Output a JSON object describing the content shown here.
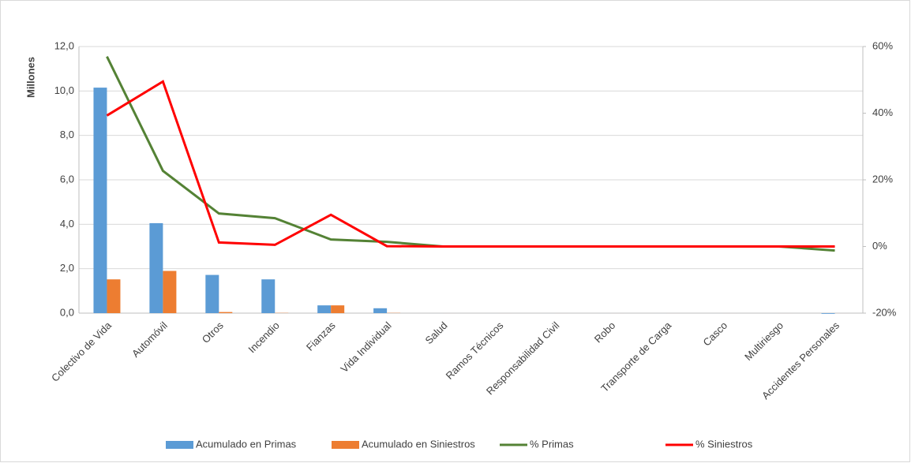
{
  "chart_data": {
    "type": "bar-line",
    "y_axis_label": "Millones",
    "categories": [
      "Colectivo de Vida",
      "Automóvil",
      "Otros",
      "Incendio",
      "Fianzas",
      "Vida Individual",
      "Salud",
      "Ramos Técnicos",
      "Responsabilidad Civil",
      "Robo",
      "Transporte de Carga",
      "Casco",
      "Multiriesgo",
      "Accidentes Personales"
    ],
    "series": [
      {
        "name": "Acumulado en Primas",
        "type": "bar",
        "color": "#5b9bd5",
        "values": [
          10.15,
          4.05,
          1.72,
          1.52,
          0.35,
          0.22,
          0,
          0,
          0,
          0,
          0,
          0,
          0,
          -0.03
        ]
      },
      {
        "name": "Acumulado en Siniestros",
        "type": "bar",
        "color": "#ed7d31",
        "values": [
          1.52,
          1.9,
          0.05,
          0.01,
          0.35,
          0.01,
          0,
          0,
          0,
          0,
          0,
          0,
          0,
          0
        ]
      },
      {
        "name": "% Primas",
        "type": "line",
        "axis": "y2",
        "color": "#548235",
        "values": [
          57,
          22.7,
          9.9,
          8.5,
          2.1,
          1.4,
          0,
          0,
          0,
          0,
          0,
          0,
          0,
          -1.2
        ]
      },
      {
        "name": "% Siniestros",
        "type": "line",
        "axis": "y2",
        "color": "#ff0000",
        "values": [
          39.3,
          49.5,
          1.2,
          0.5,
          9.5,
          0.1,
          0,
          0,
          0,
          0,
          0,
          0,
          0,
          0
        ]
      }
    ],
    "ylim": [
      0,
      12
    ],
    "yticks": [
      {
        "value": 0,
        "label": "0,0"
      },
      {
        "value": 2,
        "label": "2,0"
      },
      {
        "value": 4,
        "label": "4,0"
      },
      {
        "value": 6,
        "label": "6,0"
      },
      {
        "value": 8,
        "label": "8,0"
      },
      {
        "value": 10,
        "label": "10,0"
      },
      {
        "value": 12,
        "label": "12,0"
      }
    ],
    "y2lim": [
      -20,
      60
    ],
    "y2ticks": [
      {
        "value": -20,
        "label": "-20%"
      },
      {
        "value": 0,
        "label": "0%"
      },
      {
        "value": 20,
        "label": "20%"
      },
      {
        "value": 40,
        "label": "40%"
      },
      {
        "value": 60,
        "label": "60%"
      }
    ],
    "grid": true,
    "legend": "bottom"
  }
}
